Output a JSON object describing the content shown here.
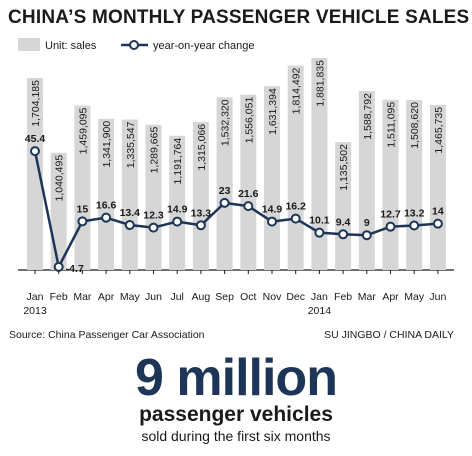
{
  "header": {
    "title": "CHINA’S MONTHLY PASSENGER VEHICLE SALES"
  },
  "legend": {
    "bars_label": "Unit: sales",
    "line_label": "year-on-year change"
  },
  "footer": {
    "source": "Source: China Passenger Car Association",
    "credit": "SU JINGBO / CHINA DAILY"
  },
  "callout": {
    "headline": "9 million",
    "subline": "passenger vehicles",
    "caption": "sold during the first six months"
  },
  "chart_data": {
    "type": "bar",
    "categories": [
      "Jan",
      "Feb",
      "Mar",
      "Apr",
      "May",
      "Jun",
      "Jul",
      "Aug",
      "Sep",
      "Oct",
      "Nov",
      "Dec",
      "Jan",
      "Feb",
      "Mar",
      "Apr",
      "May",
      "Jun"
    ],
    "year_labels": [
      {
        "index": 0,
        "label": "2013"
      },
      {
        "index": 12,
        "label": "2014"
      }
    ],
    "series": [
      {
        "name": "Unit: sales",
        "type": "bar",
        "values": [
          1704185,
          1040495,
          1459095,
          1341900,
          1335547,
          1289665,
          1191764,
          1315066,
          1532320,
          1556051,
          1631394,
          1814492,
          1881835,
          1135502,
          1588792,
          1511095,
          1508620,
          1465735
        ],
        "labels": [
          "1,704,185",
          "1,040,495",
          "1,459,095",
          "1,341,900",
          "1,335,547",
          "1,289,665",
          "1,191,764",
          "1,315,066",
          "1,532,320",
          "1,556,051",
          "1,631,394",
          "1,814,492",
          "1,881,835",
          "1,135,502",
          "1,588,792",
          "1,511,095",
          "1,508,620",
          "1,465,735"
        ]
      },
      {
        "name": "year-on-year change",
        "type": "line",
        "values": [
          45.4,
          -4.7,
          15,
          16.6,
          13.4,
          12.3,
          14.9,
          13.3,
          23,
          21.6,
          14.9,
          16.2,
          10.1,
          9.4,
          9,
          12.7,
          13.2,
          14
        ],
        "labels": [
          "45.4",
          "-4.7",
          "15",
          "16.6",
          "13.4",
          "12.3",
          "14.9",
          "13.3",
          "23",
          "21.6",
          "14.9",
          "16.2",
          "10.1",
          "9.4",
          "9",
          "12.7",
          "13.2",
          "14"
        ]
      }
    ],
    "colors": {
      "bar": "#d6d6d6",
      "line": "#1d3557",
      "marker_fill": "#ffffff"
    }
  }
}
